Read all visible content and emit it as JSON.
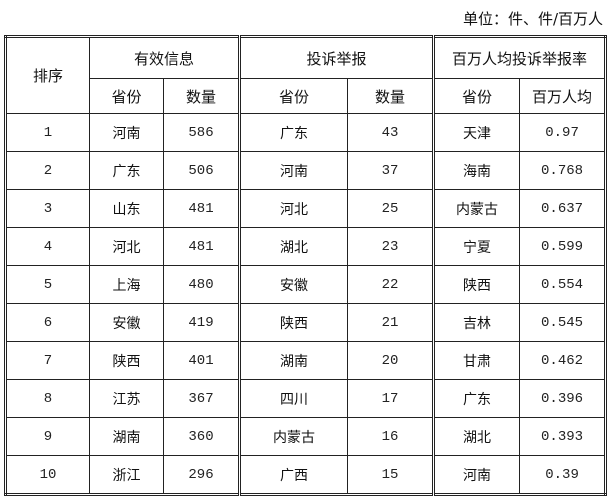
{
  "unit_label": "单位：件、件/百万人",
  "headers": {
    "rank": "排序",
    "group1": "有效信息",
    "group2": "投诉举报",
    "group3": "百万人均投诉举报率",
    "province": "省份",
    "count": "数量",
    "per_million": "百万人均"
  },
  "rows": [
    {
      "rank": "1",
      "p1": "河南",
      "c1": "586",
      "p2": "广东",
      "c2": "43",
      "p3": "天津",
      "r3": "0.97"
    },
    {
      "rank": "2",
      "p1": "广东",
      "c1": "506",
      "p2": "河南",
      "c2": "37",
      "p3": "海南",
      "r3": "0.768"
    },
    {
      "rank": "3",
      "p1": "山东",
      "c1": "481",
      "p2": "河北",
      "c2": "25",
      "p3": "内蒙古",
      "r3": "0.637"
    },
    {
      "rank": "4",
      "p1": "河北",
      "c1": "481",
      "p2": "湖北",
      "c2": "23",
      "p3": "宁夏",
      "r3": "0.599"
    },
    {
      "rank": "5",
      "p1": "上海",
      "c1": "480",
      "p2": "安徽",
      "c2": "22",
      "p3": "陕西",
      "r3": "0.554"
    },
    {
      "rank": "6",
      "p1": "安徽",
      "c1": "419",
      "p2": "陕西",
      "c2": "21",
      "p3": "吉林",
      "r3": "0.545"
    },
    {
      "rank": "7",
      "p1": "陕西",
      "c1": "401",
      "p2": "湖南",
      "c2": "20",
      "p3": "甘肃",
      "r3": "0.462"
    },
    {
      "rank": "8",
      "p1": "江苏",
      "c1": "367",
      "p2": "四川",
      "c2": "17",
      "p3": "广东",
      "r3": "0.396"
    },
    {
      "rank": "9",
      "p1": "湖南",
      "c1": "360",
      "p2": "内蒙古",
      "c2": "16",
      "p3": "湖北",
      "r3": "0.393"
    },
    {
      "rank": "10",
      "p1": "浙江",
      "c1": "296",
      "p2": "广西",
      "c2": "15",
      "p3": "河南",
      "r3": "0.39"
    }
  ]
}
